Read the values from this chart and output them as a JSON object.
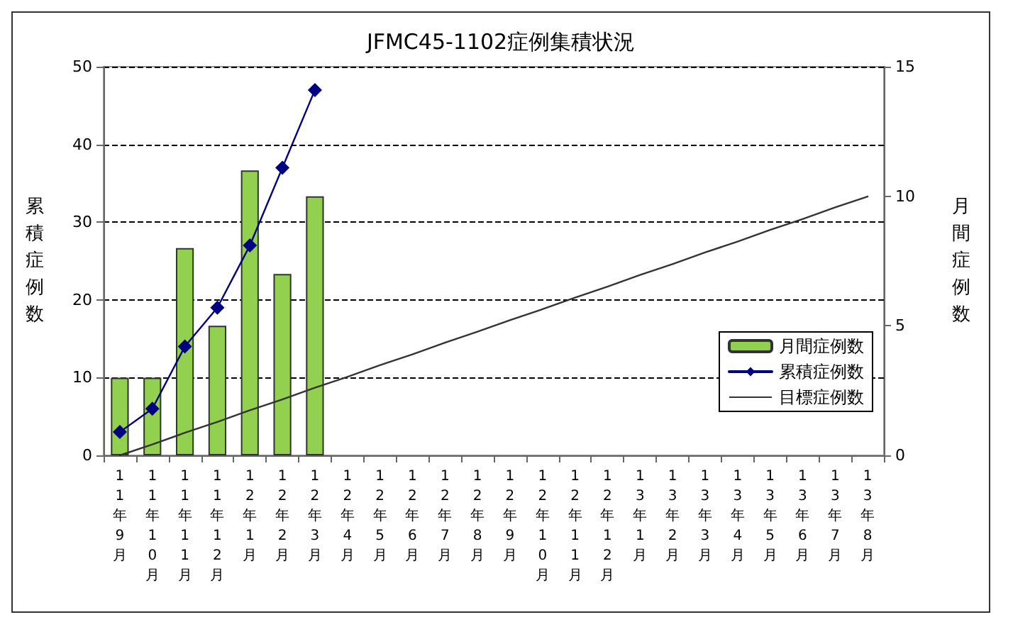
{
  "chart_data": {
    "type": "bar",
    "title": "JFMC45-1102症例集積状況",
    "ylabel": "累積症例数",
    "y2label": "月間症例数",
    "categories": [
      "11年9月",
      "11年10月",
      "11年11月",
      "11年12月",
      "12年1月",
      "12年2月",
      "12年3月",
      "12年4月",
      "12年5月",
      "12年6月",
      "12年7月",
      "12年8月",
      "12年9月",
      "12年10月",
      "12年11月",
      "12年12月",
      "13年1月",
      "13年2月",
      "13年3月",
      "13年4月",
      "13年5月",
      "13年6月",
      "13年7月",
      "13年8月"
    ],
    "series": [
      {
        "name": "月間症例数",
        "axis": "y2",
        "color": "#92d050",
        "values": [
          3,
          3,
          8,
          5,
          11,
          7,
          10,
          null,
          null,
          null,
          null,
          null,
          null,
          null,
          null,
          null,
          null,
          null,
          null,
          null,
          null,
          null,
          null,
          null
        ]
      },
      {
        "name": "累積症例数",
        "type": "line",
        "color": "#000080",
        "marker": "diamond",
        "line_style": "solid",
        "values": [
          3,
          6,
          14,
          19,
          27,
          37,
          47,
          null,
          null,
          null,
          null,
          null,
          null,
          null,
          null,
          null,
          null,
          null,
          null,
          null,
          null,
          null,
          null,
          null
        ]
      },
      {
        "name": "目標症例数",
        "type": "line",
        "color": "#333333",
        "marker": "none",
        "line_style": "solid",
        "values": [
          0,
          1.4,
          2.9,
          4.3,
          5.8,
          7.2,
          8.7,
          10.1,
          11.6,
          13.0,
          14.5,
          15.9,
          17.4,
          18.8,
          20.3,
          21.7,
          23.2,
          24.6,
          26.1,
          27.5,
          29.0,
          30.4,
          31.9,
          33.3
        ]
      }
    ],
    "ylim": [
      0,
      50
    ],
    "yticks": [
      0,
      10,
      20,
      30,
      40,
      50
    ],
    "y2lim": [
      0,
      15
    ],
    "y2ticks": [
      0,
      5,
      10,
      15
    ],
    "grid": "y",
    "legend": "right"
  }
}
